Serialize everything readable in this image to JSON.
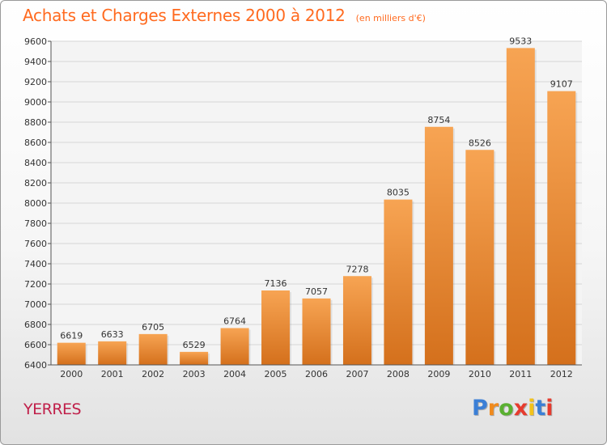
{
  "header": {
    "title": "Achats et Charges Externes 2000 à 2012",
    "subtitle": "(en milliers d'€)"
  },
  "footer": {
    "city": "YERRES",
    "logo_letters": [
      "P",
      "r",
      "o",
      "x",
      "i",
      "t",
      "i"
    ],
    "logo_colors": [
      "#3b7fd6",
      "#f08a1c",
      "#5ab031",
      "#e63b2e",
      "#f2c21b",
      "#3b7fd6",
      "#e63b2e"
    ]
  },
  "colors": {
    "bar_top": "#f7a453",
    "bar_bottom": "#d4701c",
    "title": "#ff6a1f"
  },
  "chart_data": {
    "type": "bar",
    "title": "Achats et Charges Externes 2000 à 2012",
    "subtitle": "(en milliers d'€)",
    "categories": [
      "2000",
      "2001",
      "2002",
      "2003",
      "2004",
      "2005",
      "2006",
      "2007",
      "2008",
      "2009",
      "2010",
      "2011",
      "2012"
    ],
    "values": [
      6619,
      6633,
      6705,
      6529,
      6764,
      7136,
      7057,
      7278,
      8035,
      8754,
      8526,
      9533,
      9107
    ],
    "ylim": [
      6400,
      9600
    ],
    "yticks": [
      6400,
      6600,
      6800,
      7000,
      7200,
      7400,
      7600,
      7800,
      8000,
      8200,
      8400,
      8600,
      8800,
      9000,
      9200,
      9400,
      9600
    ],
    "grid": true,
    "xlabel": "",
    "ylabel": ""
  }
}
